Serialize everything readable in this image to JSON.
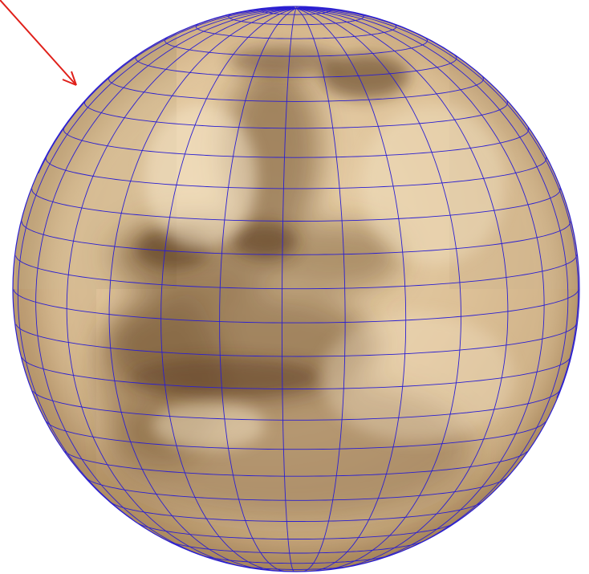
{
  "scene": {
    "background_color": "#ffffff",
    "globe": {
      "description_color": "#c7a57a",
      "dark_tone": "#6b4a28",
      "light_tone": "#f3dfbd",
      "grid_color": "#2b1fd1",
      "meridian_count": 28,
      "parallel_count": 26
    },
    "pointer_arrow": {
      "color": "#e0201a",
      "icon": "arrow-icon"
    }
  }
}
